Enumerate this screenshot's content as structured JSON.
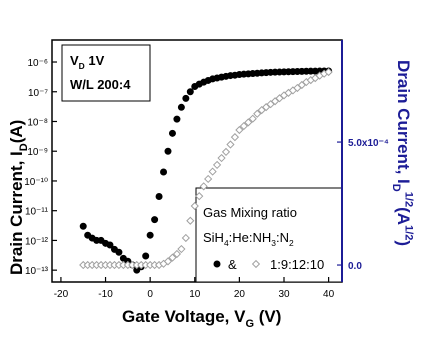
{
  "chart_data": {
    "type": "scatter",
    "xlabel": [
      "Gate Voltage, V",
      "G",
      " (V)"
    ],
    "ylabel": [
      "Drain Current, I",
      "D",
      "(A)"
    ],
    "y2label": [
      "Drain Current, I",
      "D",
      "1/2",
      "(A",
      "1/2",
      ")"
    ],
    "annotations": {
      "line1": [
        "V",
        "D",
        " 1V"
      ],
      "line2": "W/L 200:4"
    },
    "legend": {
      "title": "Gas Mixing ratio",
      "gas": [
        "SiH",
        "4",
        ":He:NH",
        "3",
        ":N",
        "2"
      ],
      "joiner": "&",
      "label": "1:9:12:10"
    },
    "x": [
      -15,
      -14,
      -13,
      -12,
      -11,
      -10,
      -9,
      -8,
      -7,
      -6,
      -5,
      -4,
      -3,
      -2,
      -1,
      0,
      1,
      2,
      3,
      4,
      5,
      6,
      7,
      8,
      9,
      10,
      11,
      12,
      13,
      14,
      15,
      16,
      17,
      18,
      19,
      20,
      21,
      22,
      23,
      24,
      25,
      26,
      27,
      28,
      29,
      30,
      31,
      32,
      33,
      34,
      35,
      36,
      37,
      38,
      39,
      40
    ],
    "series": [
      {
        "color": "#000000",
        "marker": "circle",
        "filled": true,
        "values": [
          3e-12,
          1.5e-12,
          1.2e-12,
          1e-12,
          1e-12,
          8e-13,
          7e-13,
          5e-13,
          4e-13,
          2.5e-13,
          2e-13,
          1.5e-13,
          1e-13,
          1.3e-13,
          3e-13,
          1.5e-12,
          5e-12,
          3e-11,
          2e-10,
          1e-09,
          4e-09,
          1.2e-08,
          3e-08,
          6e-08,
          1e-07,
          1.5e-07,
          1.8e-07,
          2.1e-07,
          2.4e-07,
          2.7e-07,
          2.9e-07,
          3.1e-07,
          3.3e-07,
          3.5e-07,
          3.6e-07,
          3.8e-07,
          3.9e-07,
          4e-07,
          4.1e-07,
          4.2e-07,
          4.3e-07,
          4.4e-07,
          4.5e-07,
          4.55e-07,
          4.6e-07,
          4.65e-07,
          4.7e-07,
          4.75e-07,
          4.8e-07,
          4.85e-07,
          4.9e-07,
          4.92e-07,
          4.95e-07,
          4.97e-07,
          5e-07,
          5e-07
        ]
      },
      {
        "color": "#a0a0a0",
        "marker": "diamond",
        "filled": false,
        "axis": "y2",
        "values": [
          0,
          0,
          0,
          0,
          0,
          0,
          0,
          0,
          0,
          0,
          0,
          0,
          0,
          0,
          0,
          0,
          0,
          0,
          5e-06,
          1.5e-05,
          3e-05,
          4.5e-05,
          6.5e-05,
          0.00011,
          0.00018,
          0.00024,
          0.00028,
          0.00032,
          0.00035,
          0.00038,
          0.000407,
          0.000435,
          0.00046,
          0.00049,
          0.00052,
          0.000549,
          0.000565,
          0.00058,
          0.000595,
          0.000615,
          0.00063,
          0.000642,
          0.000654,
          0.000666,
          0.000678,
          0.00069,
          0.0007,
          0.00071,
          0.00072,
          0.000732,
          0.000744,
          0.000752,
          0.00076,
          0.00077,
          0.000778,
          0.000785
        ]
      }
    ],
    "xlim": [
      -22,
      43
    ],
    "xticks": [
      -20,
      -10,
      0,
      10,
      20,
      30,
      40
    ],
    "ylog": true,
    "ylim": [
      4e-14,
      5.5e-06
    ],
    "yticks": [
      {
        "value": 1e-13,
        "label": "10⁻¹³"
      },
      {
        "value": 1e-12,
        "label": "10⁻¹²"
      },
      {
        "value": 1e-11,
        "label": "10⁻¹¹"
      },
      {
        "value": 1e-10,
        "label": "10⁻¹⁰"
      },
      {
        "value": 1e-09,
        "label": "10⁻⁹"
      },
      {
        "value": 1e-08,
        "label": "10⁻⁸"
      },
      {
        "value": 1e-07,
        "label": "10⁻⁷"
      },
      {
        "value": 1e-06,
        "label": "10⁻⁶"
      }
    ],
    "y2lim": [
      -6.9e-05,
      0.000915
    ],
    "y2ticks": [
      {
        "value": 0,
        "label": "0.0"
      },
      {
        "value": 0.0005,
        "label": "5.0x10⁻⁴"
      }
    ],
    "y2color": "#1c1c96"
  }
}
